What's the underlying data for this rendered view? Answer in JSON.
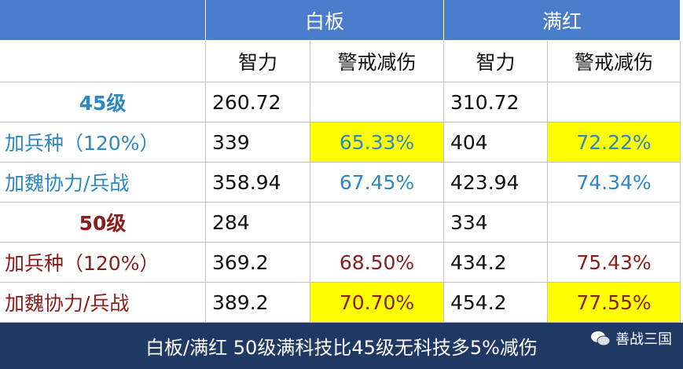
{
  "table": {
    "group_headers": [
      "白板",
      "满红"
    ],
    "column_headers": [
      "智力",
      "警戒减伤",
      "智力",
      "警戒减伤"
    ],
    "rows": [
      [
        "45级",
        "260.72",
        null,
        "310.72",
        null
      ],
      [
        "加兵种（120%）",
        "339",
        "65.33%",
        "404",
        "72.22%"
      ],
      [
        "加魏协力/兵战",
        "358.94",
        "67.45%",
        "423.94",
        "74.34%"
      ],
      [
        "50级",
        "284",
        null,
        "334",
        null
      ],
      [
        "加兵种（120%）",
        "369.2",
        "68.50%",
        "434.2",
        "75.43%"
      ],
      [
        "加魏协力/兵战",
        "389.2",
        "70.70%",
        "454.2",
        "77.55%"
      ]
    ]
  },
  "footer": {
    "caption": "白板/满红 50级满科技比45级无科技多5%减伤",
    "watermark": "善战三国"
  }
}
